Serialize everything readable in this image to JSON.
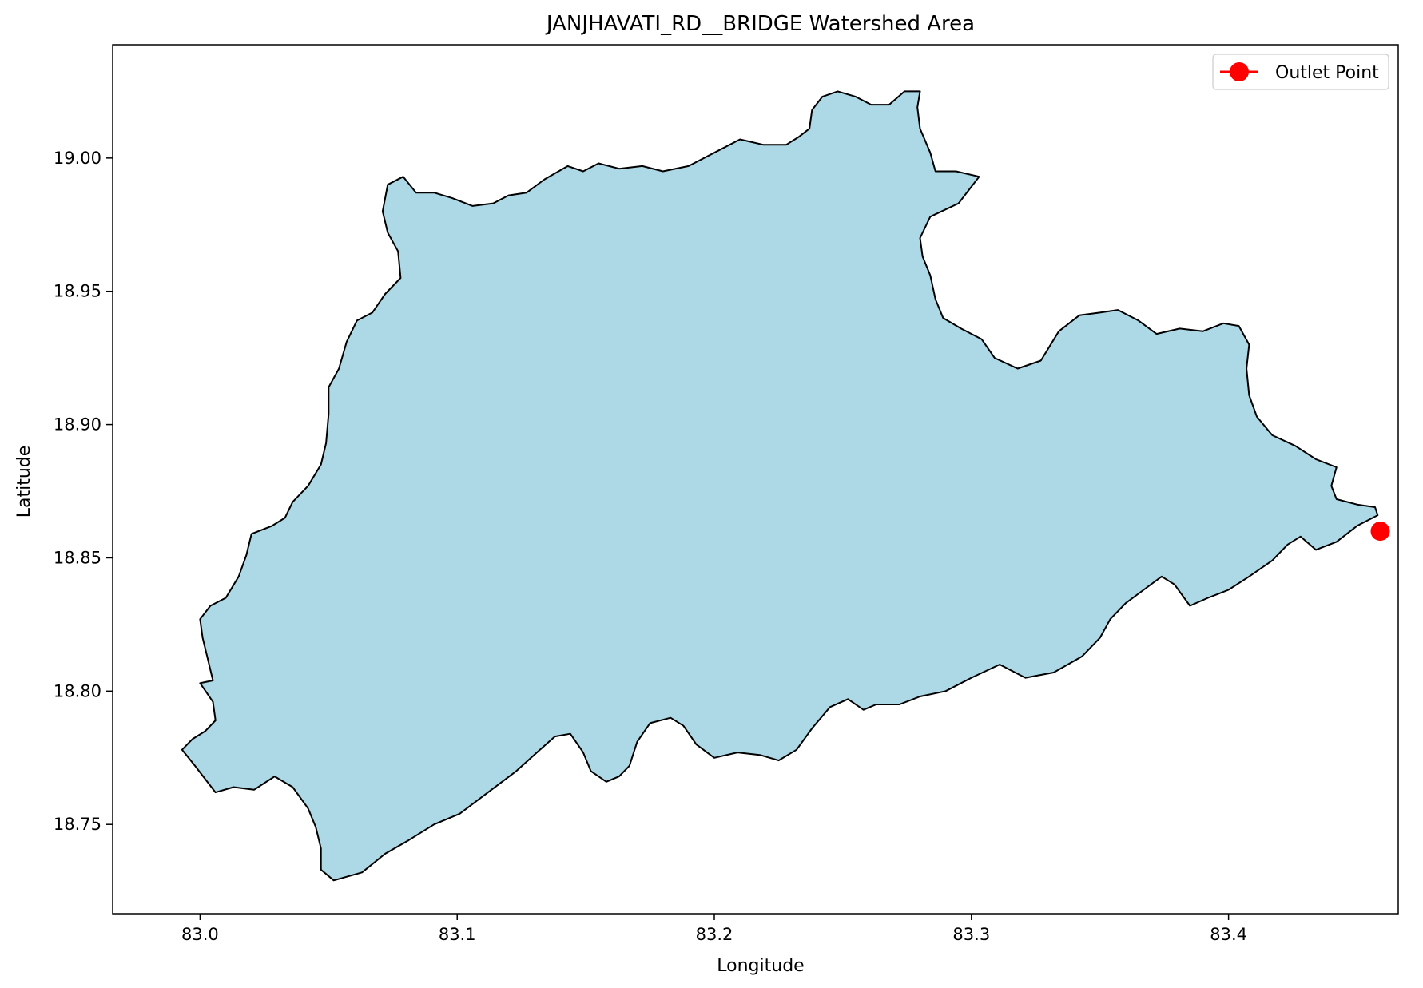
{
  "chart_data": {
    "type": "map",
    "title": "JANJHAVATI_RD__BRIDGE Watershed Area",
    "xlabel": "Longitude",
    "ylabel": "Latitude",
    "xlim": [
      82.966,
      83.466
    ],
    "ylim": [
      18.7165,
      19.0425
    ],
    "xticks": [
      83.0,
      83.1,
      83.2,
      83.3,
      83.4
    ],
    "xtick_labels": [
      "83.0",
      "83.1",
      "83.2",
      "83.3",
      "83.4"
    ],
    "yticks": [
      18.75,
      18.8,
      18.85,
      18.9,
      18.95,
      19.0
    ],
    "ytick_labels": [
      "18.75",
      "18.80",
      "18.85",
      "18.90",
      "18.95",
      "19.00"
    ],
    "legend": {
      "position": "top-right",
      "entries": [
        "Outlet Point"
      ]
    },
    "colors": {
      "watershed_fill": "#add8e6",
      "watershed_edge": "#000000",
      "outlet": "#ff0000"
    },
    "outlet_point": {
      "lon": 83.459,
      "lat": 18.86,
      "label": "Outlet Point"
    },
    "watershed_boundary": [
      [
        82.993,
        18.778
      ],
      [
        82.998,
        18.772
      ],
      [
        83.006,
        18.762
      ],
      [
        83.013,
        18.764
      ],
      [
        83.021,
        18.763
      ],
      [
        83.029,
        18.768
      ],
      [
        83.036,
        18.764
      ],
      [
        83.042,
        18.756
      ],
      [
        83.045,
        18.749
      ],
      [
        83.047,
        18.741
      ],
      [
        83.047,
        18.733
      ],
      [
        83.052,
        18.729
      ],
      [
        83.063,
        18.732
      ],
      [
        83.072,
        18.739
      ],
      [
        83.081,
        18.744
      ],
      [
        83.091,
        18.75
      ],
      [
        83.101,
        18.754
      ],
      [
        83.112,
        18.762
      ],
      [
        83.123,
        18.77
      ],
      [
        83.131,
        18.777
      ],
      [
        83.138,
        18.783
      ],
      [
        83.144,
        18.784
      ],
      [
        83.149,
        18.777
      ],
      [
        83.152,
        18.77
      ],
      [
        83.158,
        18.766
      ],
      [
        83.163,
        18.768
      ],
      [
        83.167,
        18.772
      ],
      [
        83.17,
        18.781
      ],
      [
        83.175,
        18.788
      ],
      [
        83.183,
        18.79
      ],
      [
        83.188,
        18.787
      ],
      [
        83.193,
        18.78
      ],
      [
        83.2,
        18.775
      ],
      [
        83.209,
        18.777
      ],
      [
        83.218,
        18.776
      ],
      [
        83.225,
        18.774
      ],
      [
        83.232,
        18.778
      ],
      [
        83.238,
        18.786
      ],
      [
        83.245,
        18.794
      ],
      [
        83.252,
        18.797
      ],
      [
        83.258,
        18.793
      ],
      [
        83.263,
        18.795
      ],
      [
        83.272,
        18.795
      ],
      [
        83.28,
        18.798
      ],
      [
        83.29,
        18.8
      ],
      [
        83.3,
        18.805
      ],
      [
        83.311,
        18.81
      ],
      [
        83.321,
        18.805
      ],
      [
        83.332,
        18.807
      ],
      [
        83.343,
        18.813
      ],
      [
        83.35,
        18.82
      ],
      [
        83.354,
        18.827
      ],
      [
        83.36,
        18.833
      ],
      [
        83.367,
        18.838
      ],
      [
        83.374,
        18.843
      ],
      [
        83.379,
        18.84
      ],
      [
        83.385,
        18.832
      ],
      [
        83.392,
        18.835
      ],
      [
        83.4,
        18.838
      ],
      [
        83.408,
        18.843
      ],
      [
        83.417,
        18.849
      ],
      [
        83.423,
        18.855
      ],
      [
        83.428,
        18.858
      ],
      [
        83.434,
        18.853
      ],
      [
        83.442,
        18.856
      ],
      [
        83.45,
        18.862
      ],
      [
        83.458,
        18.866
      ],
      [
        83.457,
        18.869
      ],
      [
        83.45,
        18.87
      ],
      [
        83.442,
        18.872
      ],
      [
        83.44,
        18.877
      ],
      [
        83.442,
        18.884
      ],
      [
        83.434,
        18.887
      ],
      [
        83.426,
        18.892
      ],
      [
        83.417,
        18.896
      ],
      [
        83.411,
        18.903
      ],
      [
        83.408,
        18.911
      ],
      [
        83.407,
        18.921
      ],
      [
        83.408,
        18.93
      ],
      [
        83.404,
        18.937
      ],
      [
        83.398,
        18.938
      ],
      [
        83.39,
        18.935
      ],
      [
        83.381,
        18.936
      ],
      [
        83.372,
        18.934
      ],
      [
        83.365,
        18.939
      ],
      [
        83.357,
        18.943
      ],
      [
        83.35,
        18.942
      ],
      [
        83.342,
        18.941
      ],
      [
        83.334,
        18.935
      ],
      [
        83.327,
        18.924
      ],
      [
        83.318,
        18.921
      ],
      [
        83.309,
        18.925
      ],
      [
        83.304,
        18.932
      ],
      [
        83.296,
        18.936
      ],
      [
        83.289,
        18.94
      ],
      [
        83.286,
        18.947
      ],
      [
        83.284,
        18.956
      ],
      [
        83.281,
        18.963
      ],
      [
        83.28,
        18.97
      ],
      [
        83.284,
        18.978
      ],
      [
        83.295,
        18.983
      ],
      [
        83.299,
        18.988
      ],
      [
        83.303,
        18.993
      ],
      [
        83.294,
        18.995
      ],
      [
        83.286,
        18.995
      ],
      [
        83.284,
        19.002
      ],
      [
        83.28,
        19.011
      ],
      [
        83.279,
        19.019
      ],
      [
        83.28,
        19.025
      ],
      [
        83.274,
        19.025
      ],
      [
        83.268,
        19.02
      ],
      [
        83.261,
        19.02
      ],
      [
        83.255,
        19.023
      ],
      [
        83.248,
        19.025
      ],
      [
        83.242,
        19.023
      ],
      [
        83.238,
        19.018
      ],
      [
        83.237,
        19.011
      ],
      [
        83.233,
        19.008
      ],
      [
        83.228,
        19.005
      ],
      [
        83.219,
        19.005
      ],
      [
        83.21,
        19.007
      ],
      [
        83.2,
        19.002
      ],
      [
        83.19,
        18.997
      ],
      [
        83.18,
        18.995
      ],
      [
        83.172,
        18.997
      ],
      [
        83.163,
        18.996
      ],
      [
        83.155,
        18.998
      ],
      [
        83.149,
        18.995
      ],
      [
        83.143,
        18.997
      ],
      [
        83.134,
        18.992
      ],
      [
        83.127,
        18.987
      ],
      [
        83.12,
        18.986
      ],
      [
        83.114,
        18.983
      ],
      [
        83.106,
        18.982
      ],
      [
        83.098,
        18.985
      ],
      [
        83.091,
        18.987
      ],
      [
        83.084,
        18.987
      ],
      [
        83.079,
        18.993
      ],
      [
        83.073,
        18.99
      ],
      [
        83.071,
        18.98
      ],
      [
        83.073,
        18.972
      ],
      [
        83.077,
        18.965
      ],
      [
        83.078,
        18.955
      ],
      [
        83.072,
        18.949
      ],
      [
        83.067,
        18.942
      ],
      [
        83.061,
        18.939
      ],
      [
        83.057,
        18.931
      ],
      [
        83.054,
        18.921
      ],
      [
        83.05,
        18.914
      ],
      [
        83.05,
        18.904
      ],
      [
        83.049,
        18.893
      ],
      [
        83.047,
        18.885
      ],
      [
        83.042,
        18.877
      ],
      [
        83.036,
        18.871
      ],
      [
        83.033,
        18.865
      ],
      [
        83.028,
        18.862
      ],
      [
        83.02,
        18.859
      ],
      [
        83.018,
        18.851
      ],
      [
        83.015,
        18.843
      ],
      [
        83.01,
        18.835
      ],
      [
        83.004,
        18.832
      ],
      [
        83.0,
        18.827
      ],
      [
        83.001,
        18.82
      ],
      [
        83.003,
        18.812
      ],
      [
        83.005,
        18.804
      ],
      [
        83.0,
        18.803
      ],
      [
        83.005,
        18.796
      ],
      [
        83.006,
        18.789
      ],
      [
        83.002,
        18.785
      ],
      [
        82.997,
        18.782
      ]
    ]
  }
}
